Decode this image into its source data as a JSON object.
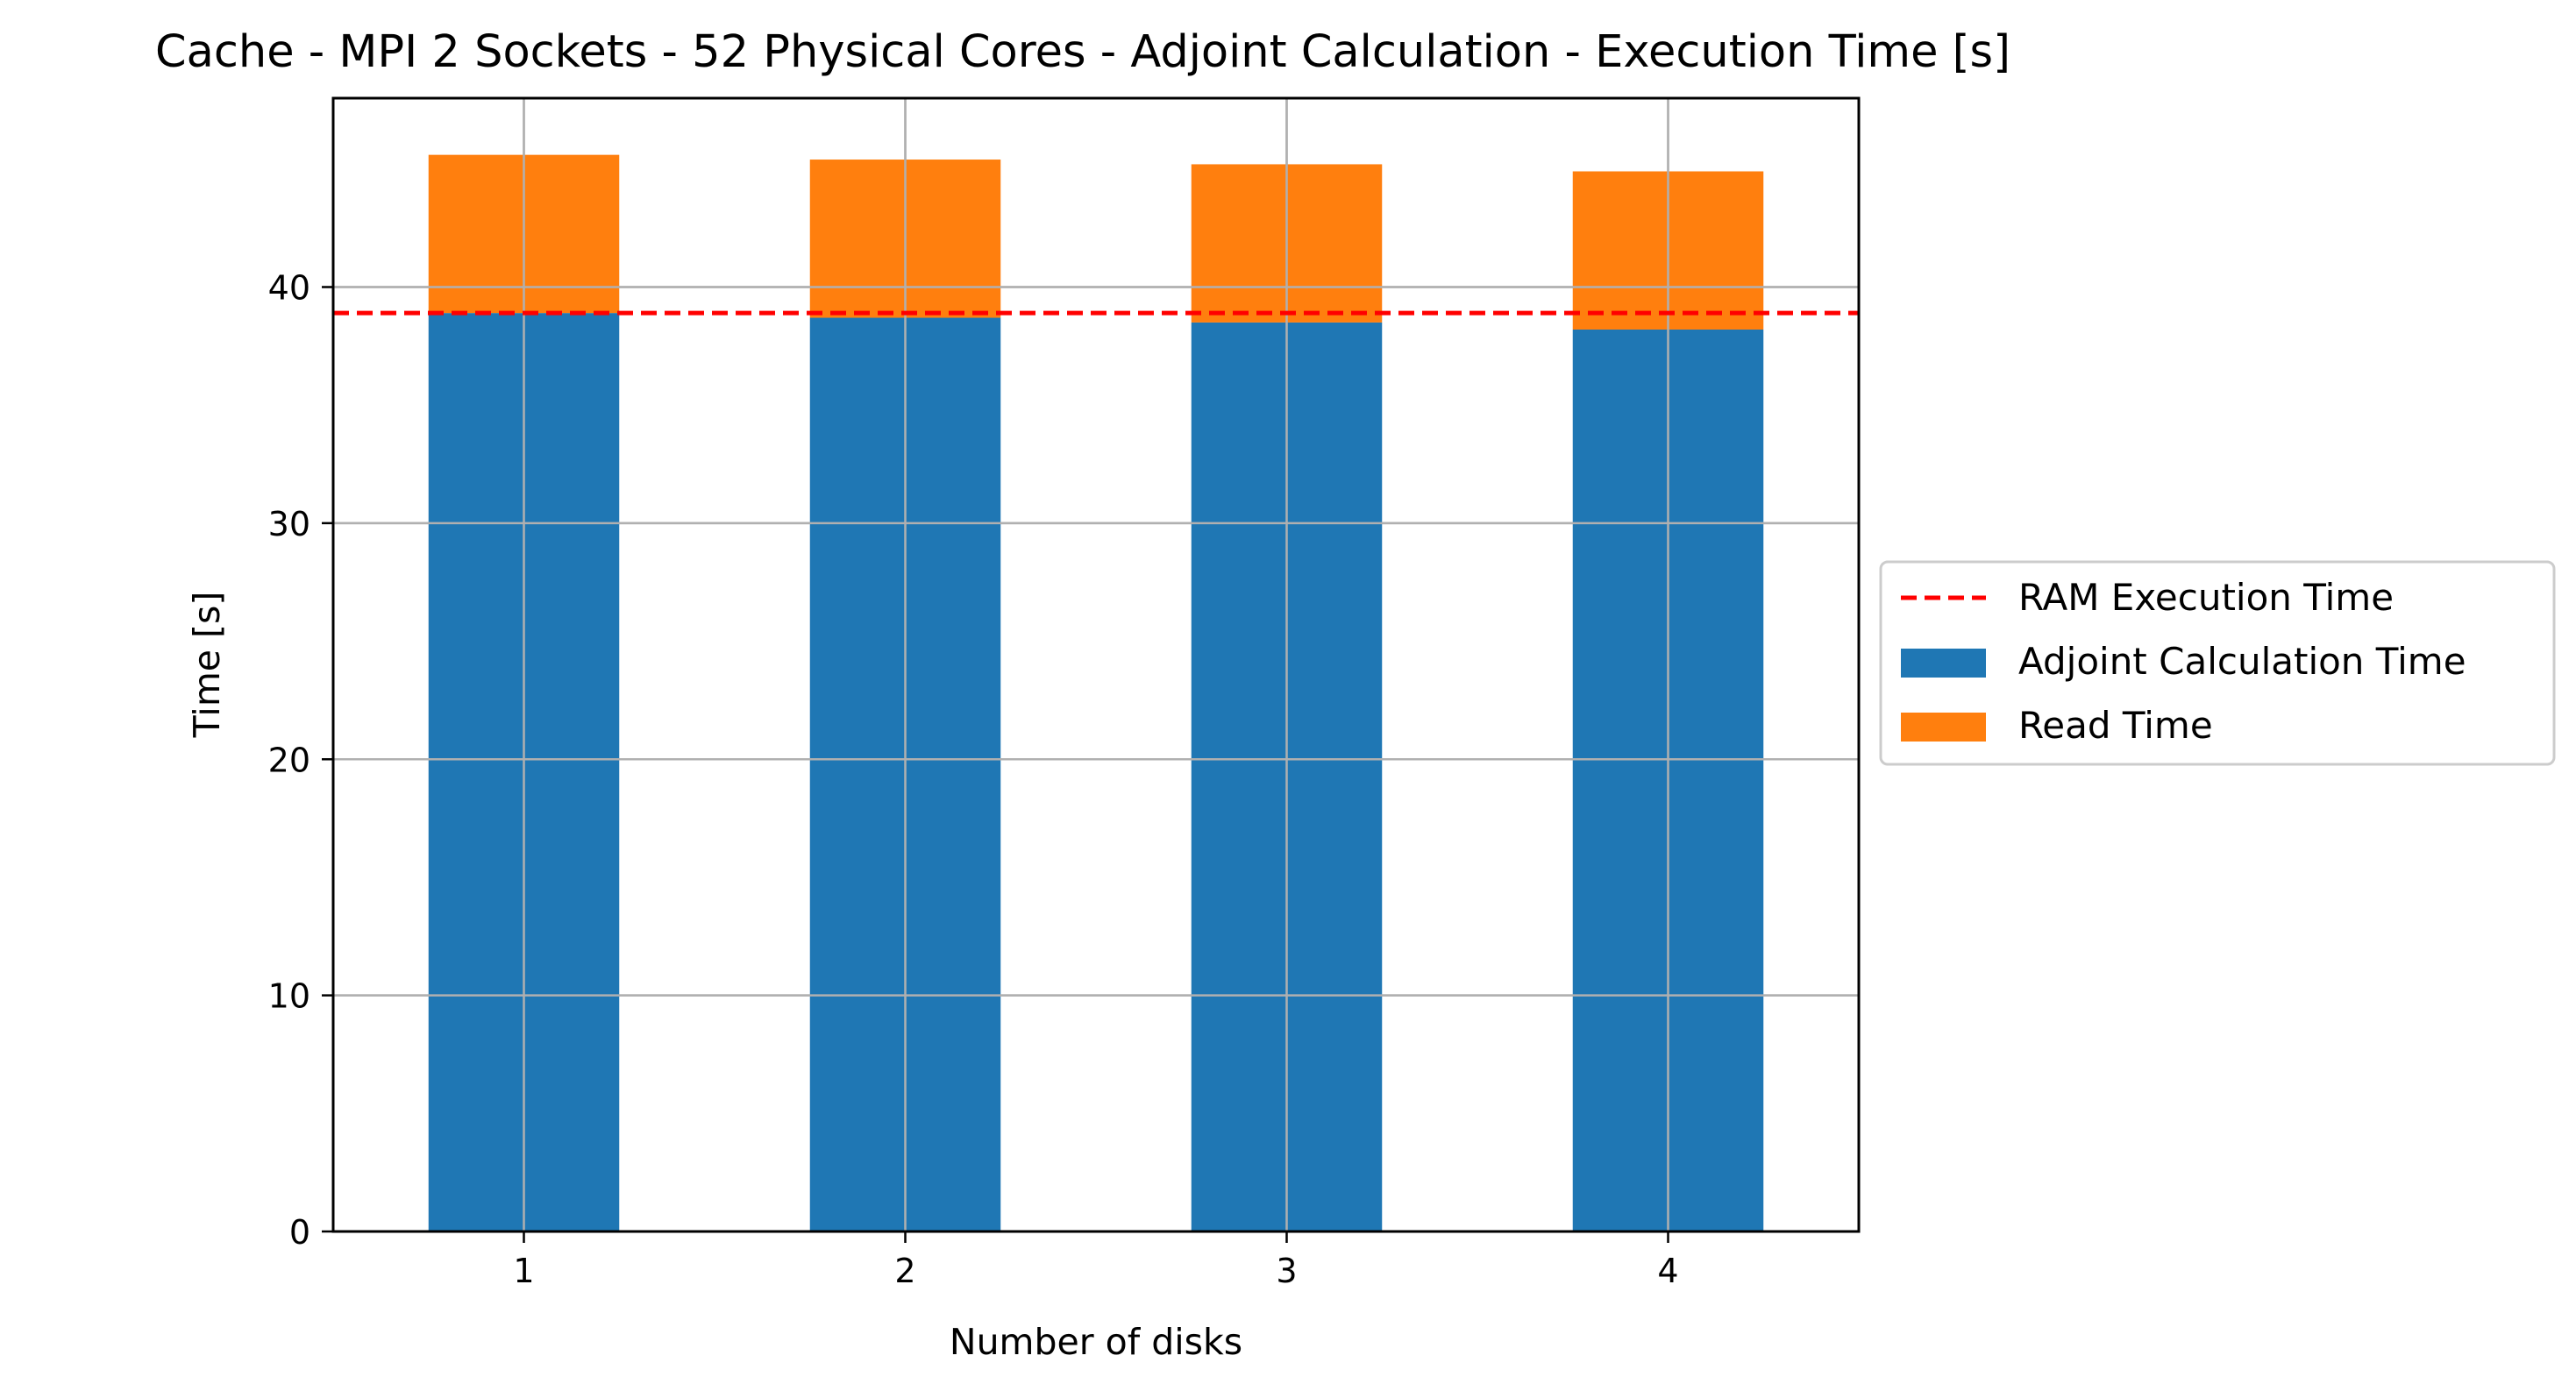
{
  "chart_data": {
    "type": "bar",
    "stacked": true,
    "title": "Cache - MPI 2 Sockets - 52 Physical Cores - Adjoint Calculation - Execution Time [s]",
    "xlabel": "Number of disks",
    "ylabel": "Time [s]",
    "categories": [
      "1",
      "2",
      "3",
      "4"
    ],
    "ylim": [
      0,
      48
    ],
    "yticks": [
      0,
      10,
      20,
      30,
      40
    ],
    "grid": true,
    "legend_position": "center-right outside",
    "series": [
      {
        "name": "Adjoint Calculation Time",
        "color": "#1f77b4",
        "values": [
          38.9,
          38.7,
          38.5,
          38.2
        ]
      },
      {
        "name": "Read Time",
        "color": "#ff7f0e",
        "values": [
          6.7,
          6.7,
          6.7,
          6.7
        ]
      }
    ],
    "reference_line": {
      "name": "RAM Execution Time",
      "value": 38.9,
      "color": "#ff0000",
      "style": "dashed"
    }
  }
}
